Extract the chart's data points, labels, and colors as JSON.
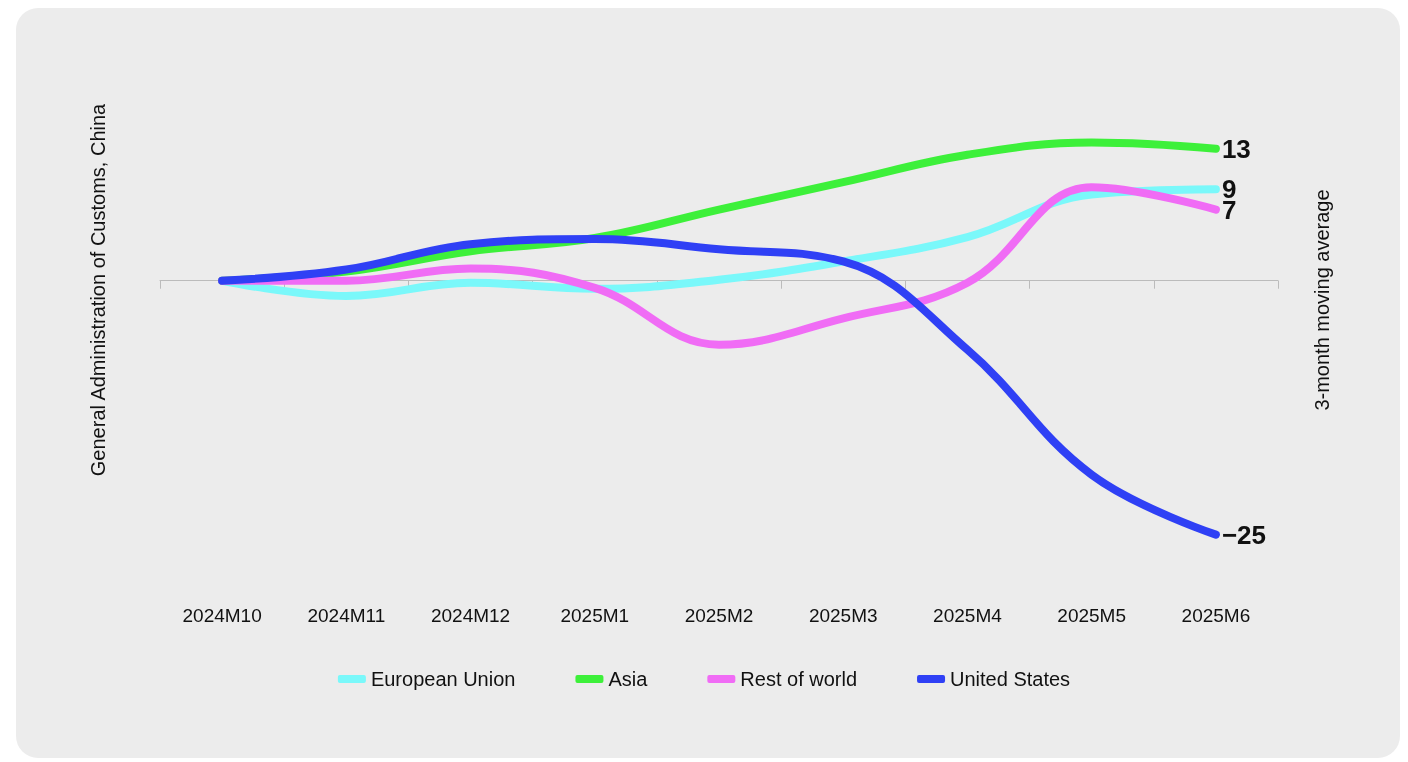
{
  "chart_data": {
    "type": "line",
    "tick_labels": "x",
    "ylabel": "General Administration of Customs, China",
    "y2label": "3-month moving average",
    "categories": [
      "2024M10",
      "2024M11",
      "2024M12",
      "2025M1",
      "2025M2",
      "2025M3",
      "2025M4",
      "2025M5",
      "2025M6"
    ],
    "series": [
      {
        "name": "European Union",
        "color": "#7af8fa",
        "values": [
          0,
          -1.5,
          -0.2,
          -0.8,
          0.1,
          1.9,
          4.3,
          8.5,
          9
        ],
        "value_labels": [
          null,
          null,
          null,
          null,
          null,
          null,
          null,
          null,
          "9"
        ]
      },
      {
        "name": "Asia",
        "color": "#3df03a",
        "values": [
          0,
          0.9,
          2.9,
          4.2,
          7,
          9.7,
          12.4,
          13.6,
          13
        ],
        "value_labels": [
          null,
          null,
          null,
          null,
          null,
          null,
          null,
          null,
          "13"
        ]
      },
      {
        "name": "Rest of world",
        "color": "#f06cf5",
        "values": [
          0,
          0,
          1.2,
          -0.7,
          -6.3,
          -3.7,
          -0.2,
          9.2,
          7
        ],
        "value_labels": [
          null,
          null,
          null,
          null,
          null,
          null,
          null,
          null,
          "7"
        ]
      },
      {
        "name": "United States",
        "color": "#2f40f5",
        "values": [
          0,
          1.1,
          3.6,
          4.1,
          3.1,
          1.9,
          -6.8,
          -19.1,
          -25
        ],
        "value_labels": [
          null,
          null,
          null,
          null,
          null,
          null,
          null,
          null,
          "−25"
        ]
      }
    ],
    "legend": "bottom",
    "grid": false,
    "marker": "none",
    "line_style": "solid"
  }
}
